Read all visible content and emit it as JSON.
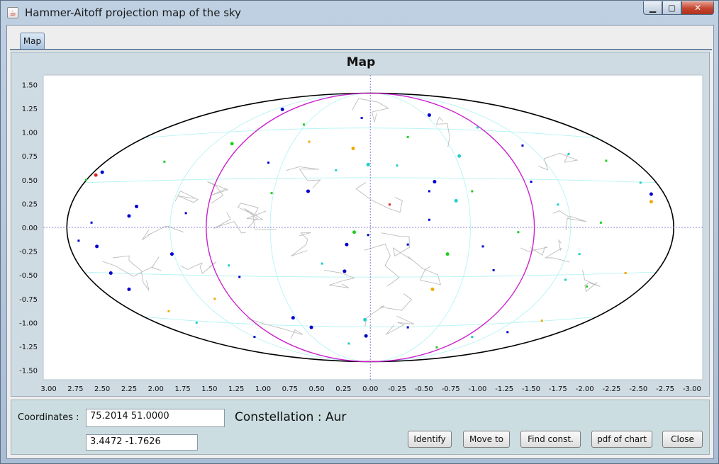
{
  "window": {
    "title": "Hammer-Aitoff projection map of the sky",
    "min_glyph": "▁",
    "max_glyph": "▢",
    "close_glyph": "✕",
    "app_icon": "java-cup-icon"
  },
  "tabs": [
    {
      "label": "Map",
      "selected": true
    }
  ],
  "map": {
    "title": "Map"
  },
  "chart_data": {
    "type": "scatter",
    "title": "Map",
    "projection": "hammer-aitoff",
    "xlim": [
      3.05,
      -3.1
    ],
    "ylim": [
      -1.6,
      1.6
    ],
    "x_ticks": [
      "3.00",
      "2.75",
      "2.50",
      "2.25",
      "2.00",
      "1.75",
      "1.50",
      "1.25",
      "1.00",
      "0.75",
      "0.50",
      "0.25",
      "0.00",
      "-0.25",
      "-0.50",
      "-0.75",
      "-1.00",
      "-1.25",
      "-1.50",
      "-1.75",
      "-2.00",
      "-2.25",
      "-2.50",
      "-2.75",
      "-3.00"
    ],
    "y_ticks": [
      "1.50",
      "1.25",
      "1.00",
      "0.75",
      "0.50",
      "0.25",
      "0.00",
      "-0.25",
      "-0.50",
      "-0.75",
      "-1.00",
      "-1.25",
      "-1.50"
    ],
    "ellipse": {
      "center": [
        0,
        0
      ],
      "x_radius": 2.83,
      "y_radius": 1.41
    },
    "meridian_line": {
      "x_radius": 1.53,
      "y_radius": 1.41,
      "color": "#cc22cc"
    },
    "crosshair": {
      "x": 0.0,
      "y": 0.0
    },
    "star_colors": [
      "#0000cc",
      "#22cccc",
      "#22cc22",
      "#eeaa00",
      "#dd2222"
    ],
    "stars": [
      [
        0.82,
        1.24,
        0,
        3
      ],
      [
        0.08,
        1.15,
        0,
        2
      ],
      [
        -0.55,
        1.18,
        0,
        3
      ],
      [
        0.62,
        1.08,
        2,
        2
      ],
      [
        1.29,
        0.88,
        2,
        3
      ],
      [
        0.57,
        0.9,
        3,
        2
      ],
      [
        0.16,
        0.83,
        3,
        3
      ],
      [
        -0.25,
        0.65,
        1,
        2
      ],
      [
        0.02,
        0.66,
        1,
        3
      ],
      [
        -0.83,
        0.75,
        1,
        3
      ],
      [
        -1.42,
        0.86,
        0,
        2
      ],
      [
        1.92,
        0.69,
        2,
        2
      ],
      [
        2.5,
        0.58,
        0,
        3
      ],
      [
        2.65,
        0.5,
        2,
        2
      ],
      [
        2.56,
        0.55,
        4,
        3
      ],
      [
        2.18,
        0.22,
        0,
        3
      ],
      [
        2.25,
        0.12,
        0,
        3
      ],
      [
        1.72,
        0.15,
        0,
        2
      ],
      [
        0.92,
        0.36,
        2,
        2
      ],
      [
        0.58,
        0.38,
        0,
        3
      ],
      [
        0.15,
        -0.05,
        2,
        3
      ],
      [
        0.02,
        -0.08,
        0,
        2
      ],
      [
        0.22,
        -0.18,
        0,
        3
      ],
      [
        -0.35,
        -0.18,
        0,
        2
      ],
      [
        0.45,
        -0.38,
        1,
        2
      ],
      [
        0.24,
        -0.46,
        0,
        3
      ],
      [
        1.22,
        -0.52,
        0,
        2
      ],
      [
        1.85,
        -0.28,
        0,
        3
      ],
      [
        2.42,
        -0.48,
        0,
        3
      ],
      [
        2.25,
        -0.65,
        0,
        3
      ],
      [
        1.88,
        -0.88,
        3,
        2
      ],
      [
        1.62,
        -1.0,
        1,
        2
      ],
      [
        0.72,
        -0.95,
        0,
        3
      ],
      [
        0.55,
        -1.05,
        0,
        3
      ],
      [
        0.05,
        -0.97,
        1,
        3
      ],
      [
        0.04,
        -1.14,
        0,
        3
      ],
      [
        -0.35,
        -1.05,
        0,
        2
      ],
      [
        -0.58,
        -0.65,
        3,
        3
      ],
      [
        -0.72,
        -0.28,
        2,
        3
      ],
      [
        -1.05,
        -0.2,
        0,
        2
      ],
      [
        -1.38,
        -0.05,
        2,
        2
      ],
      [
        -1.75,
        0.24,
        1,
        2
      ],
      [
        -2.15,
        0.05,
        2,
        2
      ],
      [
        -2.62,
        0.27,
        3,
        3
      ],
      [
        -2.62,
        0.35,
        0,
        3
      ],
      [
        -2.52,
        0.47,
        1,
        2
      ],
      [
        -2.2,
        0.7,
        2,
        2
      ],
      [
        -1.85,
        0.77,
        1,
        2
      ],
      [
        -1.5,
        0.48,
        0,
        2
      ],
      [
        -0.95,
        0.38,
        2,
        2
      ],
      [
        -0.55,
        0.38,
        0,
        2
      ],
      [
        -0.18,
        0.24,
        4,
        2
      ],
      [
        -0.55,
        0.08,
        0,
        2
      ],
      [
        -0.8,
        0.28,
        1,
        3
      ],
      [
        -1.15,
        -0.45,
        0,
        2
      ],
      [
        -1.95,
        -0.28,
        1,
        2
      ],
      [
        -1.82,
        -0.55,
        1,
        2
      ],
      [
        -2.02,
        -0.62,
        2,
        2
      ],
      [
        -2.38,
        -0.48,
        3,
        2
      ],
      [
        -1.6,
        -0.98,
        3,
        2
      ],
      [
        -1.28,
        -1.1,
        0,
        2
      ],
      [
        -0.95,
        -1.15,
        1,
        2
      ],
      [
        -0.62,
        -1.26,
        2,
        2
      ],
      [
        1.08,
        -1.15,
        0,
        2
      ],
      [
        0.2,
        -1.22,
        1,
        2
      ],
      [
        1.45,
        -0.75,
        3,
        2
      ],
      [
        1.32,
        -0.4,
        1,
        2
      ],
      [
        2.55,
        -0.2,
        0,
        3
      ],
      [
        2.6,
        0.05,
        0,
        2
      ],
      [
        2.72,
        -0.14,
        0,
        2
      ],
      [
        0.95,
        0.68,
        0,
        2
      ],
      [
        0.32,
        0.6,
        1,
        2
      ],
      [
        -0.35,
        0.95,
        2,
        2
      ],
      [
        -1.0,
        1.05,
        1,
        2
      ],
      [
        -0.6,
        0.48,
        0,
        3
      ]
    ]
  },
  "coordinates": {
    "label": "Coordinates :",
    "value": "75.2014  51.0000",
    "secondary": "3.4472   -1.7626"
  },
  "constellation": {
    "label": "Constellation : Aur"
  },
  "buttons": {
    "identify": "Identify",
    "move_to": "Move to",
    "find_const": "Find const.",
    "pdf": "pdf of chart",
    "close": "Close"
  }
}
